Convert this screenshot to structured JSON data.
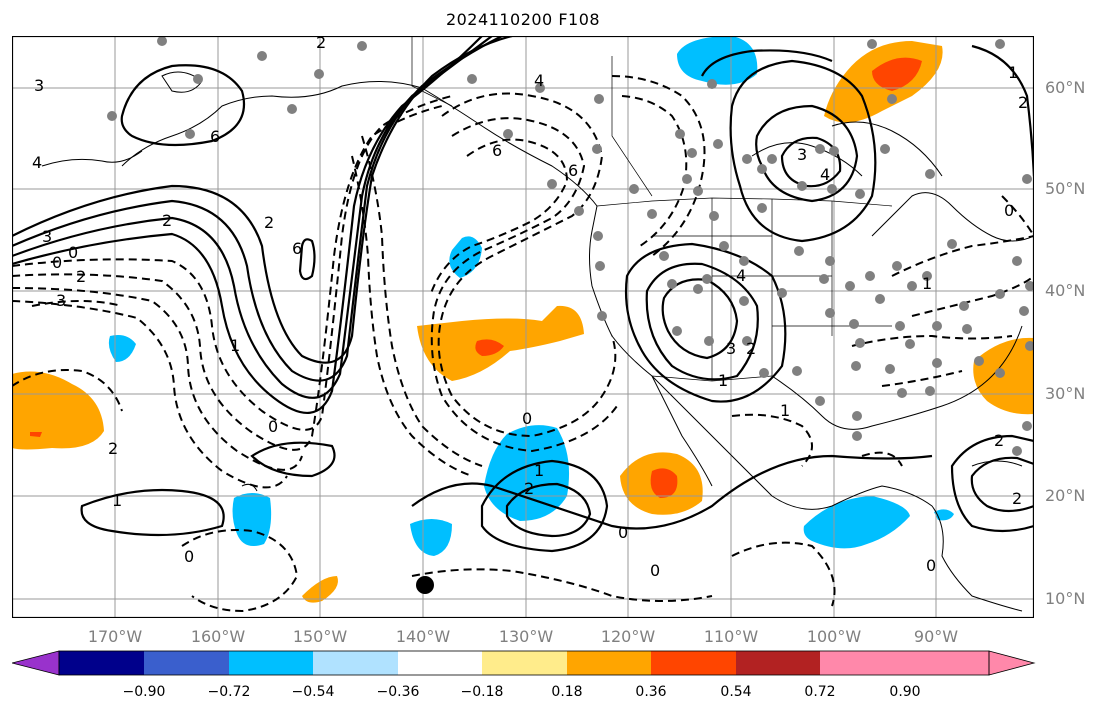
{
  "title": "2024110200 F108",
  "lat_labels": [
    "60°N",
    "50°N",
    "40°N",
    "30°N",
    "20°N",
    "10°N"
  ],
  "lon_labels": [
    "170°W",
    "160°W",
    "150°W",
    "140°W",
    "130°W",
    "120°W",
    "110°W",
    "100°W",
    "90°W"
  ],
  "contour_labels": [
    "3",
    "4",
    "6",
    "2",
    "3",
    "0",
    "2",
    "3",
    "0",
    "2",
    "1",
    "0",
    "1",
    "2",
    "2",
    "6",
    "4",
    "6",
    "3",
    "4",
    "3",
    "4",
    "2",
    "1",
    "0",
    "0",
    "1",
    "2",
    "0",
    "1",
    "1",
    "2",
    "2",
    "0",
    "1",
    "2",
    "0",
    "6",
    "0"
  ],
  "colorbar": {
    "ticks": [
      "−0.90",
      "−0.72",
      "−0.54",
      "−0.36",
      "−0.18",
      "0.18",
      "0.36",
      "0.54",
      "0.72",
      "0.90"
    ],
    "colors": [
      "#9932cc",
      "#00008b",
      "#3a5fcd",
      "#00bfff",
      "#b0e2ff",
      "#ffffff",
      "#ffec8b",
      "#ffa500",
      "#ff4500",
      "#b22222",
      "#ff88aa"
    ]
  }
}
